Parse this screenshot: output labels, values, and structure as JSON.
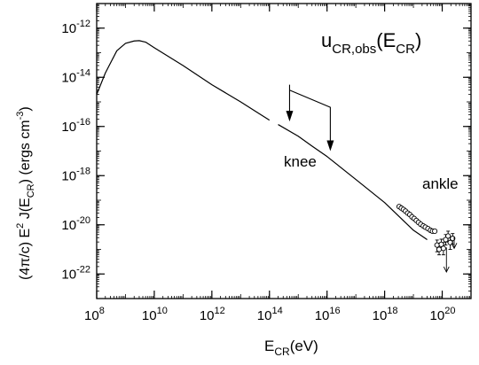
{
  "chart_data": {
    "type": "line",
    "title": "",
    "xlabel": {
      "main": "E",
      "sub": "CR",
      "unit": "(eV)"
    },
    "ylabel": {
      "prefix": "(4π/c) E",
      "sup": "2",
      "mid": " J(E",
      "sub": "CR",
      "unit": ") (ergs cm",
      "unit_sup": "-3",
      "close": ")"
    },
    "x_scale": "log",
    "y_scale": "log",
    "xlim": [
      100000000.0,
      1e+21
    ],
    "ylim": [
      1e-23,
      1e-11
    ],
    "x_ticks": [
      {
        "value": 100000000.0,
        "base": "10",
        "exp": "8"
      },
      {
        "value": 10000000000.0,
        "base": "10",
        "exp": "10"
      },
      {
        "value": 1000000000000.0,
        "base": "10",
        "exp": "12"
      },
      {
        "value": 100000000000000.0,
        "base": "10",
        "exp": "14"
      },
      {
        "value": 1e+16,
        "base": "10",
        "exp": "16"
      },
      {
        "value": 1e+18,
        "base": "10",
        "exp": "18"
      },
      {
        "value": 1e+20,
        "base": "10",
        "exp": "20"
      }
    ],
    "y_ticks": [
      {
        "value": 1e-12,
        "base": "10",
        "exp": "-12"
      },
      {
        "value": 1e-14,
        "base": "10",
        "exp": "-14"
      },
      {
        "value": 1e-16,
        "base": "10",
        "exp": "-16"
      },
      {
        "value": 1e-18,
        "base": "10",
        "exp": "-18"
      },
      {
        "value": 1e-20,
        "base": "10",
        "exp": "-20"
      },
      {
        "value": 1e-22,
        "base": "10",
        "exp": "-22"
      }
    ],
    "series": [
      {
        "style": "line",
        "color": "#000000",
        "points": [
          [
            100000000.0,
            2e-15
          ],
          [
            200000000.0,
            1.5e-14
          ],
          [
            500000000.0,
            1.2e-13
          ],
          [
            1000000000.0,
            2.4e-13
          ],
          [
            2000000000.0,
            3e-13
          ],
          [
            3000000000.0,
            3.1e-13
          ],
          [
            5000000000.0,
            2.7e-13
          ],
          [
            10000000000.0,
            1.6e-13
          ],
          [
            100000000000.0,
            3e-14
          ],
          [
            1000000000000.0,
            5e-15
          ],
          [
            10000000000000.0,
            1e-15
          ],
          [
            100000000000000.0,
            1.8e-16
          ]
        ]
      },
      {
        "style": "line",
        "color": "#000000",
        "points": [
          [
            200000000000000.0,
            1.2e-16
          ],
          [
            1000000000000000.0,
            4e-17
          ],
          [
            3000000000000000.0,
            1.6e-17
          ],
          [
            1e+16,
            6e-18
          ],
          [
            1e+17,
            7e-19
          ],
          [
            1e+18,
            8e-20
          ],
          [
            1e+19,
            6e-21
          ],
          [
            3e+19,
            2.5e-21
          ]
        ]
      },
      {
        "style": "markers",
        "marker": "open-circle",
        "color": "#000000",
        "points": [
          [
            3.2e+18,
            5.5e-20
          ],
          [
            3.8e+18,
            4.8e-20
          ],
          [
            4.5e+18,
            4.2e-20
          ],
          [
            5.3e+18,
            3.6e-20
          ],
          [
            6.3e+18,
            3e-20
          ],
          [
            7.5e+18,
            2.6e-20
          ],
          [
            8.9e+18,
            2.1e-20
          ],
          [
            1.06e+19,
            1.8e-20
          ],
          [
            1.26e+19,
            1.5e-20
          ],
          [
            1.5e+19,
            1.25e-20
          ],
          [
            1.8e+19,
            1.05e-20
          ],
          [
            2.2e+19,
            9e-21
          ],
          [
            2.6e+19,
            8e-21
          ],
          [
            3.2e+19,
            7e-21
          ],
          [
            3.9e+19,
            6e-21
          ],
          [
            4.6e+19,
            5.5e-21
          ],
          [
            5.5e+19,
            5.5e-21
          ],
          [
            6.6e+19,
            1.5e-21
          ],
          [
            7.8e+19,
            1e-21
          ],
          [
            9.3e+19,
            1.6e-21
          ],
          [
            1.1e+20,
            1.1e-21
          ],
          [
            1.32e+20,
            2.5e-21
          ],
          [
            1.6e+20,
            3.5e-21
          ],
          [
            1.9e+20,
            1.9e-21
          ],
          [
            2.3e+20,
            2.8e-21
          ]
        ],
        "error_bars": [
          {
            "x": 6.6e+19,
            "lo": 8e-22,
            "hi": 2.4e-21
          },
          {
            "x": 7.8e+19,
            "lo": 6e-22,
            "hi": 1.8e-21
          },
          {
            "x": 9.3e+19,
            "lo": 1e-21,
            "hi": 2.6e-21
          },
          {
            "x": 1.1e+20,
            "lo": 6e-22,
            "hi": 1.9e-21
          },
          {
            "x": 1.32e+20,
            "lo": 1.5e-21,
            "hi": 4e-21
          },
          {
            "x": 1.6e+20,
            "lo": 2e-21,
            "hi": 5.5e-21
          },
          {
            "x": 1.9e+20,
            "lo": 1e-21,
            "hi": 3.2e-21
          },
          {
            "x": 2.3e+20,
            "lo": 1.6e-21,
            "hi": 4.4e-21
          }
        ],
        "upper_limits": [
          {
            "x": 1.4e+20,
            "y": 1.2e-21,
            "to": 1.2e-22
          },
          {
            "x": 2.6e+20,
            "y": 3.2e-21,
            "to": 1.1e-21
          }
        ]
      }
    ],
    "annotations": {
      "formula": {
        "u": "u",
        "sub": "CR,obs",
        "mid": "(E",
        "sub2": "CR",
        "close": ")"
      },
      "knee": "knee",
      "ankle": "ankle",
      "bracket": {
        "x1": 500000000000000.0,
        "x2": 1.3e+16,
        "y_top": 3e-15,
        "tip1": 1.6e-16,
        "tip2": 1e-17,
        "stem1": 5e-15,
        "stem2": 6e-16
      }
    }
  }
}
